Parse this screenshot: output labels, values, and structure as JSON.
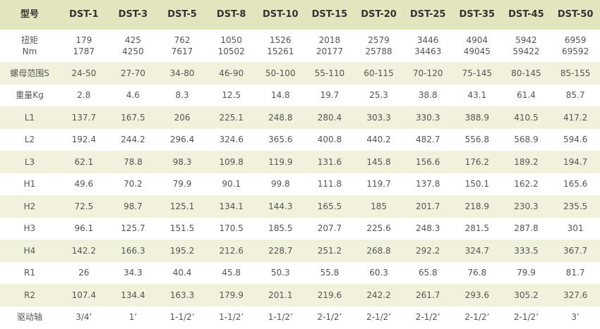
{
  "table": {
    "header": [
      "型号",
      "DST-1",
      "DST-3",
      "DST-5",
      "DST-8",
      "DST-10",
      "DST-15",
      "DST-20",
      "DST-25",
      "DST-35",
      "DST-45",
      "DST-50"
    ],
    "rows": [
      [
        [
          "扭矩",
          "Nm"
        ],
        [
          "179",
          "1787"
        ],
        [
          "425",
          "4250"
        ],
        [
          "762",
          "7617"
        ],
        [
          "1050",
          "10502"
        ],
        [
          "1526",
          "15261"
        ],
        [
          "2018",
          "20177"
        ],
        [
          "2579",
          "25788"
        ],
        [
          "3446",
          "34463"
        ],
        [
          "4904",
          "49045"
        ],
        [
          "5942",
          "59422"
        ],
        [
          "6959",
          "69592"
        ]
      ],
      [
        "螺母范围S",
        "24-50",
        "27-70",
        "34-80",
        "46-90",
        "50-100",
        "55-110",
        "60-115",
        "70-120",
        "75-145",
        "80-145",
        "85-155"
      ],
      [
        "重量Kg",
        "2.8",
        "4.6",
        "8.3",
        "12.5",
        "14.8",
        "19.7",
        "25.3",
        "38.8",
        "43.1",
        "61.4",
        "85.7"
      ],
      [
        "L1",
        "137.7",
        "167.5",
        "206",
        "225.1",
        "248.8",
        "280.4",
        "303.3",
        "330.3",
        "388.9",
        "410.5",
        "417.2"
      ],
      [
        "L2",
        "192.4",
        "244.2",
        "296.4",
        "324.6",
        "365.6",
        "400.8",
        "440.2",
        "482.7",
        "556.8",
        "568.9",
        "594.6"
      ],
      [
        "L3",
        "62.1",
        "78.8",
        "98.3",
        "109.8",
        "119.9",
        "131.6",
        "145.8",
        "156.6",
        "176.2",
        "189.2",
        "194.7"
      ],
      [
        "H1",
        "49.6",
        "70.2",
        "79.9",
        "90.1",
        "99.8",
        "111.8",
        "119.7",
        "137.8",
        "150.1",
        "162.2",
        "165.6"
      ],
      [
        "H2",
        "72.5",
        "98.7",
        "125.1",
        "134.1",
        "144.3",
        "165.5",
        "185",
        "201.7",
        "218.9",
        "230.3",
        "235.5"
      ],
      [
        "H3",
        "96.1",
        "125.7",
        "151.5",
        "170.5",
        "185.5",
        "207.7",
        "225.6",
        "248.3",
        "281.5",
        "287.8",
        "301"
      ],
      [
        "H4",
        "142.2",
        "166.3",
        "195.2",
        "212.6",
        "228.7",
        "251.2",
        "268.8",
        "292.2",
        "324.7",
        "333.5",
        "367.7"
      ],
      [
        "R1",
        "26",
        "34.3",
        "40.4",
        "45.8",
        "50.3",
        "55.8",
        "60.3",
        "65.8",
        "76.8",
        "79.9",
        "81.7"
      ],
      [
        "R2",
        "107.4",
        "134.4",
        "163.3",
        "179.9",
        "201.1",
        "219.6",
        "242.2",
        "261.7",
        "293.6",
        "305.2",
        "327.6"
      ],
      [
        "驱动轴",
        "3/4’",
        "1’",
        "1-1/2’",
        "1-1/2’",
        "1-1/2’",
        "2-1/2’",
        "2-1/2’",
        "2-1/2’",
        "2-1/2’",
        "2-1/2’",
        "3’"
      ]
    ]
  }
}
